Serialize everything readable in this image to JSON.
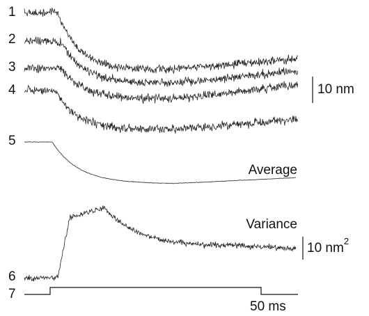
{
  "traces": [
    {
      "label": "1"
    },
    {
      "label": "2"
    },
    {
      "label": "3"
    },
    {
      "label": "4"
    },
    {
      "label": "5"
    },
    {
      "label": "6"
    },
    {
      "label": "7"
    }
  ],
  "average_label": "Average",
  "variance_label": "Variance",
  "scale_bars": {
    "displacement": "10 nm",
    "variance": {
      "label": "10 nm",
      "superscript": "2"
    },
    "time": "50 ms"
  }
}
